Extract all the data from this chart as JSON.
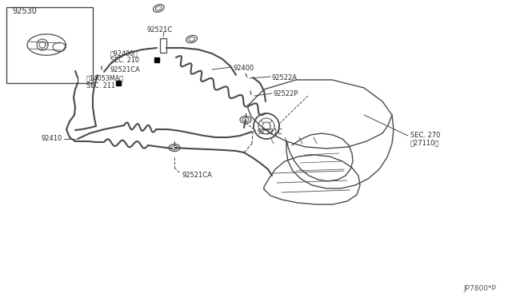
{
  "bg_color": "#ffffff",
  "line_color": "#4a4a4a",
  "text_color": "#2a2a2a",
  "diagram_id": "JP7800*P",
  "figsize": [
    6.4,
    3.72
  ],
  "dpi": 100,
  "parts": {
    "box_label": "92530",
    "sec270": "SEC. 270\n㉲27110㉳",
    "sec270_line1": "SEC. 270",
    "sec270_line2": "㈐27110】",
    "sec211_line1": "SEC. 211",
    "sec211_line2": "㈐14053MA】",
    "sec210_line1": "SEC. 210",
    "sec210_line2": "㈐92400】",
    "p92410": "92410",
    "p92521CA_top": "92521CA",
    "p92521C_mid": "92521C",
    "p92522P": "92522P",
    "p92400": "92400",
    "p92521CA_bot": "92521CA",
    "p92521C_bot": "92521C",
    "p92522A": "92522A"
  }
}
